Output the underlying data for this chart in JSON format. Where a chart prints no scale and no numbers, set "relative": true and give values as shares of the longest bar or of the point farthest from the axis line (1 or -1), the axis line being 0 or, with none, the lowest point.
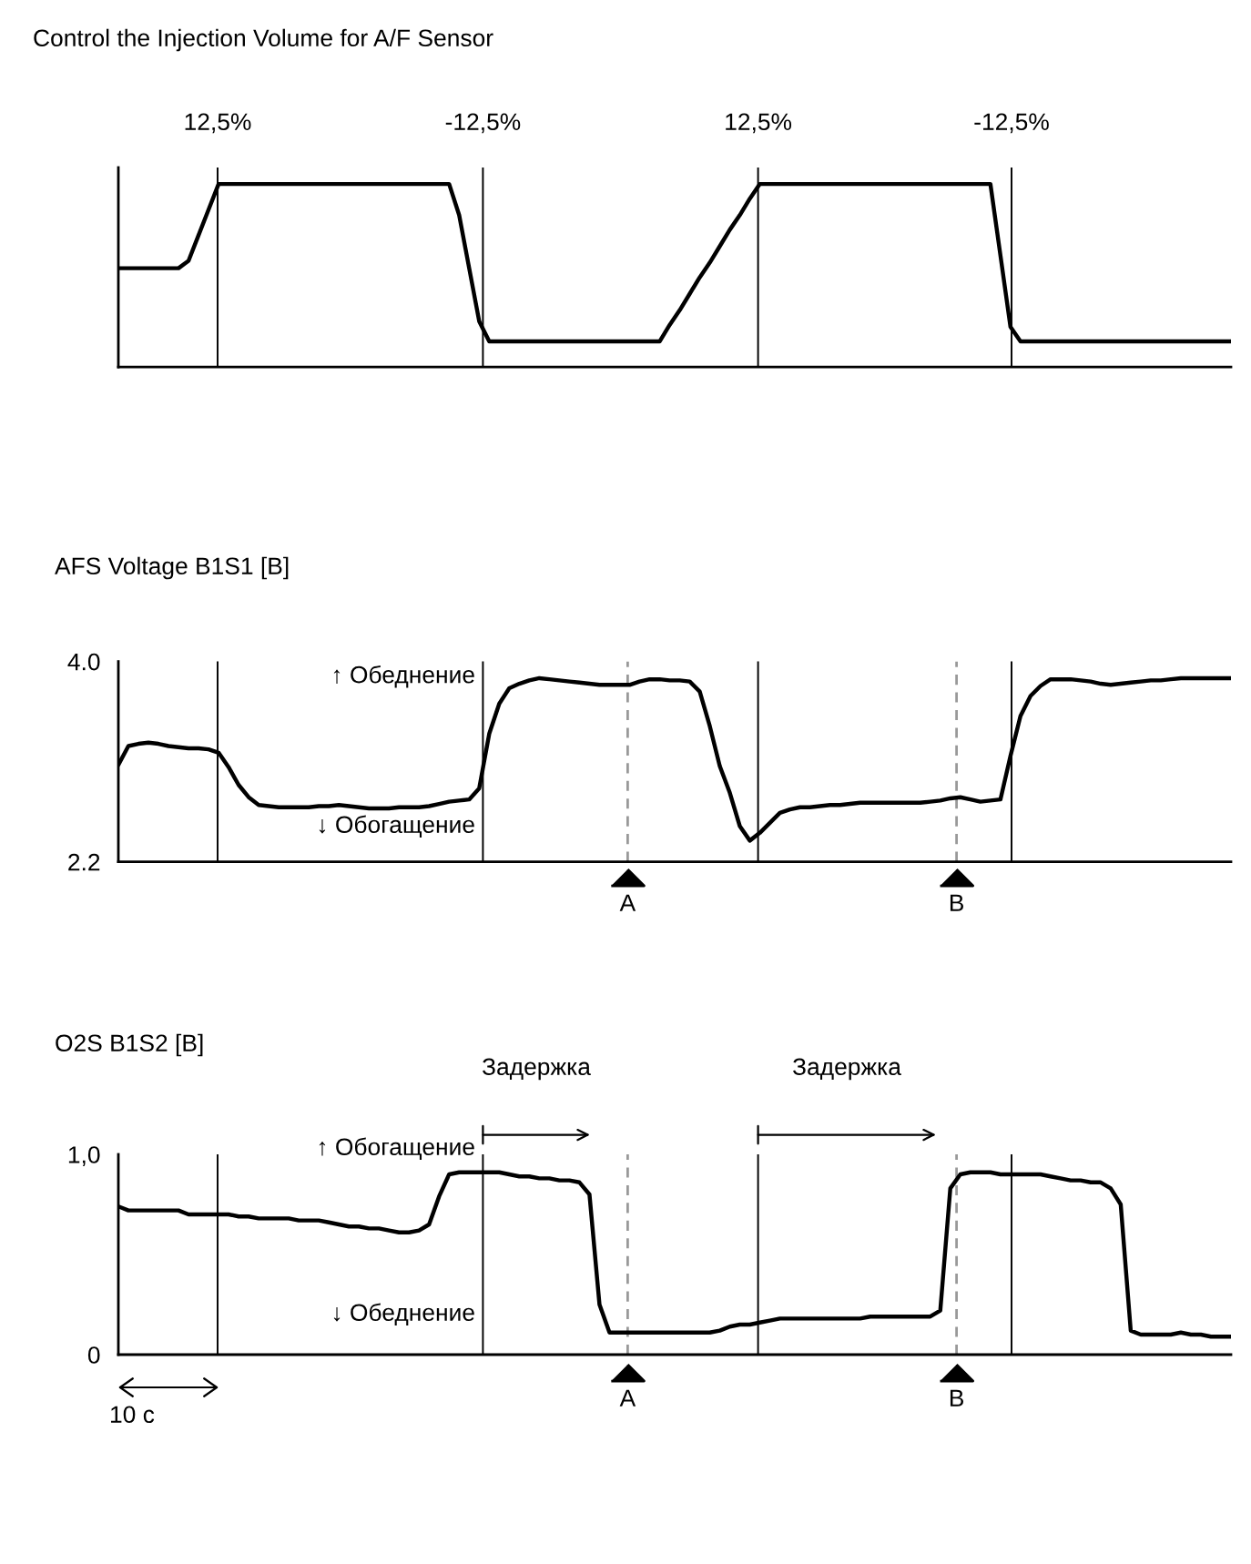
{
  "chart_data": [
    {
      "type": "line",
      "title": "Control the Injection Volume for A/F Sensor",
      "relative": true,
      "color": "#000000",
      "tick_labels": false,
      "categories": [
        null,
        null,
        null,
        null,
        null,
        null,
        null,
        null,
        null,
        null,
        null,
        null,
        null,
        null,
        null,
        null,
        null,
        null,
        null,
        null,
        null,
        null,
        null,
        null,
        null,
        null,
        null,
        null,
        null,
        null,
        null,
        null,
        null,
        null,
        null,
        null,
        null,
        null,
        null,
        null,
        null,
        null,
        null,
        null,
        null,
        null,
        null,
        null,
        null,
        null,
        null,
        null,
        null,
        null,
        null,
        null,
        null,
        null,
        null,
        null,
        null,
        null,
        null,
        null,
        null,
        null,
        null,
        null,
        null,
        null,
        null,
        null,
        null,
        null,
        null,
        null,
        null,
        null,
        null,
        null,
        null,
        null,
        null,
        null,
        null,
        null,
        null,
        null,
        null,
        null,
        null,
        null,
        null,
        null,
        null,
        null,
        null,
        null,
        null,
        null,
        null,
        null,
        null,
        null,
        null,
        null,
        null,
        null,
        null,
        null,
        null,
        null
      ],
      "values": [
        0.54,
        0.54,
        0.54,
        0.54,
        0.54,
        0.54,
        0.54,
        0.58,
        0.72,
        0.86,
        1,
        1,
        1,
        1,
        1,
        1,
        1,
        1,
        1,
        1,
        1,
        1,
        1,
        1,
        1,
        1,
        1,
        1,
        1,
        1,
        1,
        1,
        1,
        1,
        0.83,
        0.54,
        0.25,
        0.14,
        0.14,
        0.14,
        0.14,
        0.14,
        0.14,
        0.14,
        0.14,
        0.14,
        0.14,
        0.14,
        0.14,
        0.14,
        0.14,
        0.14,
        0.14,
        0.14,
        0.14,
        0.23,
        0.31,
        0.4,
        0.49,
        0.57,
        0.66,
        0.75,
        0.83,
        0.92,
        1,
        1,
        1,
        1,
        1,
        1,
        1,
        1,
        1,
        1,
        1,
        1,
        1,
        1,
        1,
        1,
        1,
        1,
        1,
        1,
        1,
        1,
        1,
        1,
        0.61,
        0.22,
        0.14,
        0.14,
        0.14,
        0.14,
        0.14,
        0.14,
        0.14,
        0.14,
        0.14,
        0.14,
        0.14,
        0.14,
        0.14,
        0.14,
        0.14,
        0.14,
        0.14,
        0.14,
        0.14,
        0.14,
        0.14,
        0.14
      ],
      "annotations": [
        "12,5%",
        "-12,5%",
        "12,5%",
        "-12,5%"
      ]
    },
    {
      "type": "line",
      "title": "AFS Voltage B1S1 [В]",
      "color": "#000000",
      "tick_labels": "y",
      "ylim": [
        2.2,
        4.0
      ],
      "yticks": [
        {
          "value": 2.2,
          "label": "2.2"
        },
        {
          "value": 4,
          "label": "4.0"
        }
      ],
      "categories": [
        null,
        null,
        null,
        null,
        null,
        null,
        null,
        null,
        null,
        null,
        null,
        null,
        null,
        null,
        null,
        null,
        null,
        null,
        null,
        null,
        null,
        null,
        null,
        null,
        null,
        null,
        null,
        null,
        null,
        null,
        null,
        null,
        null,
        null,
        null,
        null,
        null,
        null,
        null,
        null,
        null,
        null,
        null,
        null,
        null,
        null,
        null,
        null,
        null,
        null,
        null,
        null,
        null,
        null,
        null,
        null,
        null,
        null,
        null,
        null,
        null,
        null,
        null,
        null,
        null,
        null,
        null,
        null,
        null,
        null,
        null,
        null,
        null,
        null,
        null,
        null,
        null,
        null,
        null,
        null,
        null,
        null,
        null,
        null,
        null,
        null,
        null,
        null,
        null,
        null,
        null,
        null,
        null,
        null,
        null,
        null,
        null,
        null,
        null,
        null,
        null,
        null,
        null,
        null,
        null,
        null,
        null,
        null,
        null,
        null,
        null,
        null
      ],
      "values": [
        3.07,
        3.24,
        3.26,
        3.27,
        3.26,
        3.24,
        3.23,
        3.22,
        3.22,
        3.21,
        3.18,
        3.05,
        2.89,
        2.78,
        2.71,
        2.7,
        2.69,
        2.69,
        2.69,
        2.69,
        2.7,
        2.7,
        2.71,
        2.7,
        2.69,
        2.68,
        2.68,
        2.68,
        2.69,
        2.69,
        2.69,
        2.7,
        2.72,
        2.74,
        2.75,
        2.76,
        2.86,
        3.35,
        3.62,
        3.76,
        3.8,
        3.83,
        3.85,
        3.84,
        3.83,
        3.82,
        3.81,
        3.8,
        3.79,
        3.79,
        3.79,
        3.79,
        3.82,
        3.84,
        3.84,
        3.83,
        3.83,
        3.82,
        3.73,
        3.42,
        3.06,
        2.82,
        2.52,
        2.39,
        2.46,
        2.55,
        2.64,
        2.67,
        2.69,
        2.69,
        2.7,
        2.71,
        2.71,
        2.72,
        2.73,
        2.73,
        2.73,
        2.73,
        2.73,
        2.73,
        2.73,
        2.74,
        2.75,
        2.77,
        2.78,
        2.76,
        2.74,
        2.75,
        2.76,
        3.15,
        3.51,
        3.69,
        3.78,
        3.84,
        3.84,
        3.84,
        3.83,
        3.82,
        3.8,
        3.79,
        3.8,
        3.81,
        3.82,
        3.83,
        3.83,
        3.84,
        3.85,
        3.85,
        3.85,
        3.85,
        3.85,
        3.85
      ],
      "annotations": [
        "↑ Обеднение",
        "↓ Обогащение",
        "A",
        "B"
      ]
    },
    {
      "type": "line",
      "title": "O2S B1S2 [В]",
      "color": "#000000",
      "tick_labels": "y",
      "ylim": [
        0,
        1.0
      ],
      "yticks": [
        {
          "value": 0,
          "label": "0"
        },
        {
          "value": 1,
          "label": "1,0"
        }
      ],
      "categories": [
        null,
        null,
        null,
        null,
        null,
        null,
        null,
        null,
        null,
        null,
        null,
        null,
        null,
        null,
        null,
        null,
        null,
        null,
        null,
        null,
        null,
        null,
        null,
        null,
        null,
        null,
        null,
        null,
        null,
        null,
        null,
        null,
        null,
        null,
        null,
        null,
        null,
        null,
        null,
        null,
        null,
        null,
        null,
        null,
        null,
        null,
        null,
        null,
        null,
        null,
        null,
        null,
        null,
        null,
        null,
        null,
        null,
        null,
        null,
        null,
        null,
        null,
        null,
        null,
        null,
        null,
        null,
        null,
        null,
        null,
        null,
        null,
        null,
        null,
        null,
        null,
        null,
        null,
        null,
        null,
        null,
        null,
        null,
        null,
        null,
        null,
        null,
        null,
        null,
        null,
        null,
        null,
        null,
        null,
        null,
        null,
        null,
        null,
        null,
        null,
        null,
        null,
        null,
        null,
        null,
        null,
        null,
        null,
        null,
        null,
        null,
        null
      ],
      "values": [
        0.74,
        0.72,
        0.72,
        0.72,
        0.72,
        0.72,
        0.72,
        0.7,
        0.7,
        0.7,
        0.7,
        0.7,
        0.69,
        0.69,
        0.68,
        0.68,
        0.68,
        0.68,
        0.67,
        0.67,
        0.67,
        0.66,
        0.65,
        0.64,
        0.64,
        0.63,
        0.63,
        0.62,
        0.61,
        0.61,
        0.62,
        0.65,
        0.79,
        0.9,
        0.91,
        0.91,
        0.91,
        0.91,
        0.91,
        0.9,
        0.89,
        0.89,
        0.88,
        0.88,
        0.87,
        0.87,
        0.86,
        0.8,
        0.25,
        0.11,
        0.11,
        0.11,
        0.11,
        0.11,
        0.11,
        0.11,
        0.11,
        0.11,
        0.11,
        0.11,
        0.12,
        0.14,
        0.15,
        0.15,
        0.16,
        0.17,
        0.18,
        0.18,
        0.18,
        0.18,
        0.18,
        0.18,
        0.18,
        0.18,
        0.18,
        0.19,
        0.19,
        0.19,
        0.19,
        0.19,
        0.19,
        0.19,
        0.22,
        0.83,
        0.9,
        0.91,
        0.91,
        0.91,
        0.9,
        0.9,
        0.9,
        0.9,
        0.9,
        0.89,
        0.88,
        0.87,
        0.87,
        0.86,
        0.86,
        0.83,
        0.75,
        0.12,
        0.1,
        0.1,
        0.1,
        0.1,
        0.11,
        0.1,
        0.1,
        0.09,
        0.09,
        0.09
      ],
      "annotations": [
        "Задержка",
        "Задержка",
        "↑ Обогащение",
        "↓ Обеднение",
        "A",
        "B",
        "10 с"
      ]
    }
  ]
}
